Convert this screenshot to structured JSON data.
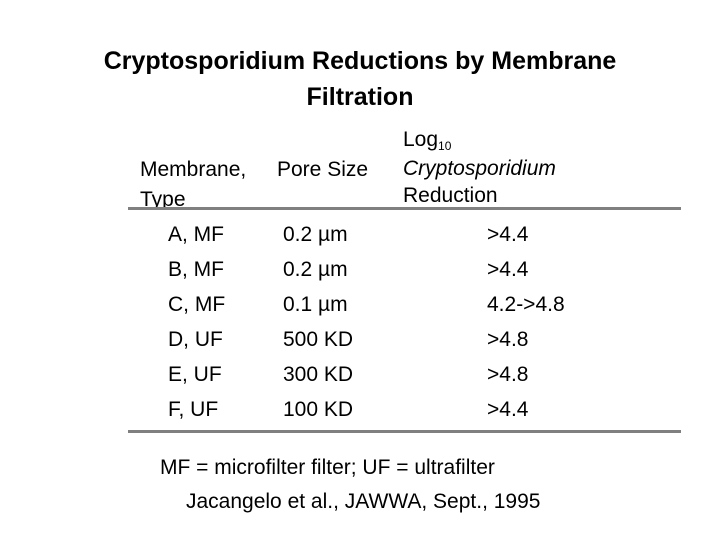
{
  "title": {
    "line1": "Cryptosporidium Reductions by Membrane",
    "line2": "Filtration"
  },
  "headers": {
    "membrane_line1": "Membrane,",
    "membrane_line2": "Type",
    "pore": "Pore Size",
    "log_base": "Log",
    "log_subscript": "10",
    "log_line2": "Cryptosporidium",
    "log_line3": "Reduction"
  },
  "rows": [
    {
      "type": "A, MF",
      "pore": "0.2 µm",
      "log": ">4.4"
    },
    {
      "type": "B, MF",
      "pore": "0.2 µm",
      "log": ">4.4"
    },
    {
      "type": "C, MF",
      "pore": "0.1 µm",
      "log": "4.2->4.8"
    },
    {
      "type": "D, UF",
      "pore": "500 KD",
      "log": ">4.8"
    },
    {
      "type": "E, UF",
      "pore": "300 KD",
      "log": ">4.8"
    },
    {
      "type": "F, UF",
      "pore": "100 KD",
      "log": ">4.4"
    }
  ],
  "footer": {
    "note": "MF = microfilter filter;  UF = ultrafilter",
    "citation": "Jacangelo et al., JAWWA, Sept., 1995"
  },
  "colors": {
    "rule": "#808080",
    "text": "#000000",
    "background": "#ffffff"
  }
}
